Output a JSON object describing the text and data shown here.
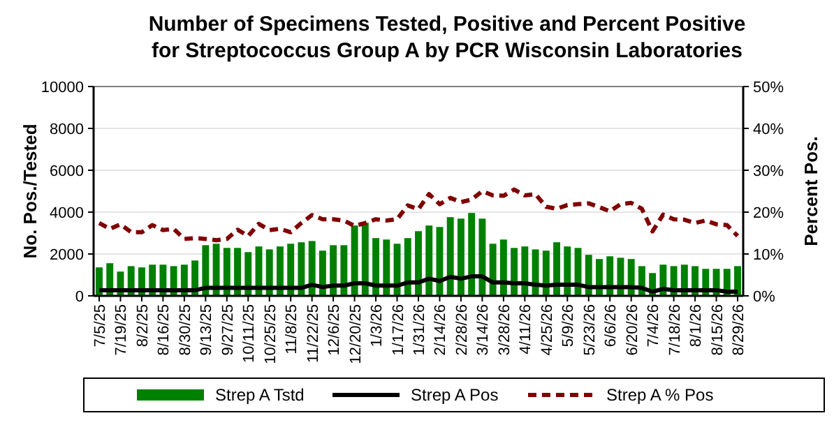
{
  "chart_data": {
    "type": "bar",
    "title": "Number of Specimens Tested, Positive and Percent Positive\nfor Streptococcus Group A by PCR Wisconsin Laboratories",
    "ylabel": "No. Pos./Tested",
    "y2label": "Percent Pos.",
    "categories": [
      "7/5/25",
      null,
      "7/19/25",
      null,
      "8/2/25",
      null,
      "8/16/25",
      null,
      "8/30/25",
      null,
      "9/13/25",
      null,
      "9/27/25",
      null,
      "10/11/25",
      null,
      "10/25/25",
      null,
      "11/8/25",
      null,
      "11/22/25",
      null,
      "12/6/25",
      null,
      "12/20/25",
      null,
      "1/3/26",
      null,
      "1/17/26",
      null,
      "1/31/26",
      null,
      "2/14/26",
      null,
      "2/28/26",
      null,
      "3/14/26",
      null,
      "3/28/26",
      null,
      "4/11/26",
      null,
      "4/25/26",
      null,
      "5/9/26",
      null,
      "5/23/26",
      null,
      "6/6/26",
      null,
      "6/20/26",
      null,
      "7/4/26",
      null,
      "7/18/26",
      null,
      "8/1/26",
      null,
      "8/15/26",
      null,
      "8/29/26"
    ],
    "series": [
      {
        "name": "Strep A Tstd",
        "color": "#008000",
        "values": [
          1360,
          1560,
          1160,
          1420,
          1360,
          1490,
          1490,
          1420,
          1490,
          1690,
          2420,
          2490,
          2290,
          2290,
          2090,
          2360,
          2220,
          2360,
          2490,
          2560,
          2620,
          2160,
          2420,
          2420,
          3360,
          3490,
          2760,
          2690,
          2490,
          2760,
          3090,
          3360,
          3290,
          3760,
          3690,
          3960,
          3690,
          2490,
          2690,
          2290,
          2360,
          2220,
          2160,
          2560,
          2360,
          2290,
          1960,
          1760,
          1890,
          1820,
          1760,
          1420,
          1090,
          1490,
          1420,
          1490,
          1420,
          1290,
          1290,
          1290,
          1420
        ]
      },
      {
        "name": "Strep A Pos",
        "type": "line",
        "color": "#000000",
        "line_style": "solid",
        "values": [
          270,
          270,
          270,
          270,
          270,
          270,
          270,
          270,
          270,
          270,
          380,
          380,
          380,
          380,
          380,
          380,
          380,
          380,
          380,
          380,
          530,
          420,
          490,
          490,
          600,
          600,
          490,
          490,
          490,
          640,
          640,
          820,
          710,
          910,
          820,
          930,
          930,
          640,
          640,
          600,
          600,
          530,
          490,
          530,
          530,
          530,
          420,
          420,
          420,
          420,
          420,
          380,
          200,
          330,
          270,
          270,
          270,
          270,
          270,
          200,
          200
        ]
      },
      {
        "name": "Strep A % Pos",
        "type": "line",
        "axis": "y2",
        "color": "#800000",
        "line_style": "dashed",
        "values": [
          17.4,
          16.0,
          17.1,
          15.2,
          15.2,
          16.9,
          15.7,
          16.0,
          13.6,
          13.8,
          13.6,
          13.3,
          13.6,
          15.8,
          14.3,
          17.2,
          15.7,
          16.0,
          15.2,
          17.4,
          19.3,
          18.3,
          18.3,
          18.0,
          16.7,
          17.4,
          18.3,
          18.0,
          18.3,
          21.6,
          20.7,
          24.3,
          21.9,
          23.4,
          22.4,
          23.0,
          25.0,
          24.0,
          23.9,
          25.4,
          24.0,
          24.3,
          21.3,
          20.8,
          21.7,
          21.9,
          22.1,
          21.2,
          20.2,
          21.9,
          22.2,
          20.8,
          15.4,
          19.4,
          18.3,
          18.2,
          17.4,
          18.0,
          17.1,
          16.9,
          14.3
        ]
      }
    ],
    "ylim": [
      0,
      10000
    ],
    "yticks": [
      0,
      2000,
      4000,
      6000,
      8000,
      10000
    ],
    "y2lim": [
      0,
      50
    ],
    "y2ticks": [
      {
        "value": 0,
        "label": "0%"
      },
      {
        "value": 10,
        "label": "10%"
      },
      {
        "value": 20,
        "label": "20%"
      },
      {
        "value": 30,
        "label": "30%"
      },
      {
        "value": 40,
        "label": "40%"
      },
      {
        "value": 50,
        "label": "50%"
      }
    ],
    "grid": "y",
    "legend": "bottom",
    "marker": "none"
  }
}
